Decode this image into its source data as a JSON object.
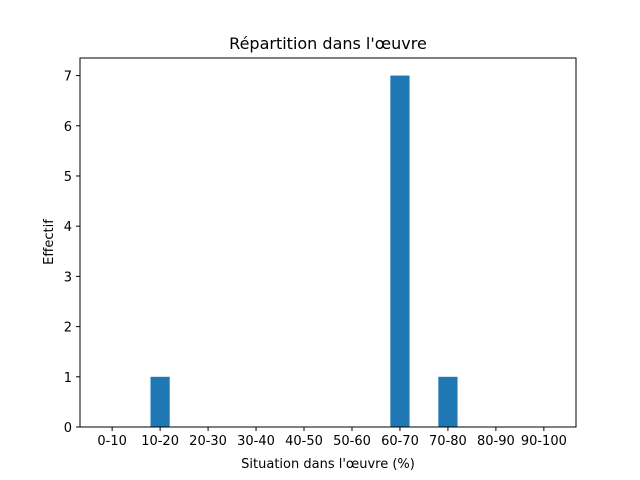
{
  "chart_data": {
    "type": "bar",
    "title": "Répartition dans l'œuvre",
    "x_label": "Situation dans l'œuvre (%)",
    "y_label": "Effectif",
    "categories": [
      "0-10",
      "10-20",
      "20-30",
      "30-40",
      "40-50",
      "50-60",
      "60-70",
      "70-80",
      "80-90",
      "90-100"
    ],
    "values": [
      0,
      1,
      0,
      0,
      0,
      0,
      7,
      1,
      0,
      0
    ],
    "color": "#1f77b4",
    "ylim": [
      0,
      7.35
    ],
    "yticks": [
      0,
      1,
      2,
      3,
      4,
      5,
      6,
      7
    ],
    "grid": false
  }
}
